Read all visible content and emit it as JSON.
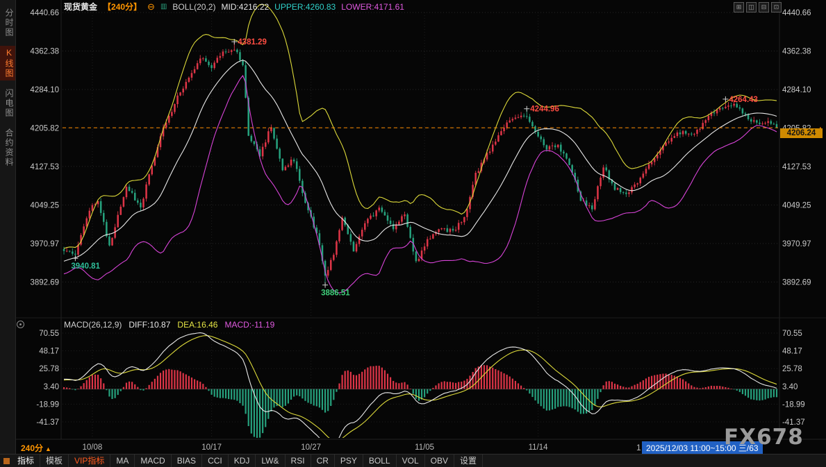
{
  "header": {
    "symbol": "现货黄金",
    "period_tag": "【240分】",
    "collapse_icon": "⊖",
    "boll_icon": "▥",
    "boll_label": "BOLL(20,2)",
    "boll_mid": "MID:4216.22",
    "boll_upper": "UPPER:4260.83",
    "boll_lower": "LOWER:4171.61",
    "layout_icons": [
      "⊞",
      "◫",
      "⊟",
      "⊡"
    ]
  },
  "sidebar": {
    "tabs": [
      {
        "label": "分时图",
        "active": false
      },
      {
        "label": "K线图",
        "active": true
      },
      {
        "label": "闪电图",
        "active": false
      },
      {
        "label": "合约资料",
        "active": false
      }
    ]
  },
  "macd_header": {
    "title": "MACD(26,12,9)",
    "diff": "DIFF:10.87",
    "dea": "DEA:16.46",
    "macd": "MACD:-11.19"
  },
  "price_tag": "4206.24",
  "date_axis": {
    "period": "240分",
    "period_arrow": "▲",
    "partial_label": "1",
    "highlight": "2025/12/03 11:00~15:00 三/63"
  },
  "toolbar": {
    "items": [
      {
        "label": "指标"
      },
      {
        "label": "模板"
      },
      {
        "label": "VIP指标"
      },
      {
        "label": "MA"
      },
      {
        "label": "MACD"
      },
      {
        "label": "BIAS"
      },
      {
        "label": "CCI"
      },
      {
        "label": "KDJ"
      },
      {
        "label": "LW&"
      },
      {
        "label": "RSI"
      },
      {
        "label": "CR"
      },
      {
        "label": "PSY"
      },
      {
        "label": "BOLL"
      },
      {
        "label": "VOL"
      },
      {
        "label": "OBV"
      },
      {
        "label": "设置"
      }
    ]
  },
  "watermark": "FX678",
  "chart_data": {
    "type": "candlestick_with_macd",
    "title": "现货黄金 240分 K线 BOLL(20,2) MACD(26,12,9)",
    "bars_visible": 252,
    "last_close": 4206.24,
    "price_axis_labels": [
      4440.66,
      4362.38,
      4284.1,
      4205.82,
      4127.53,
      4049.25,
      3970.97,
      3892.69
    ],
    "macd_axis_labels": [
      70.55,
      48.17,
      25.78,
      3.4,
      -18.99,
      -41.37
    ],
    "x_ticks": [
      {
        "label": "10/08",
        "bar": 10
      },
      {
        "label": "10/17",
        "bar": 52
      },
      {
        "label": "10/27",
        "bar": 87
      },
      {
        "label": "11/05",
        "bar": 127
      },
      {
        "label": "11/14",
        "bar": 167
      }
    ],
    "boll": {
      "period": 20,
      "mult": 2,
      "mid": 4216.22,
      "upper": 4260.83,
      "lower": 4171.61
    },
    "macd": {
      "fast": 12,
      "slow": 26,
      "signal": 9,
      "diff": 10.87,
      "dea": 16.46,
      "hist": -11.19
    },
    "close_anchors": [
      [
        0,
        3952
      ],
      [
        4,
        3952
      ],
      [
        9,
        4040
      ],
      [
        12,
        4056
      ],
      [
        16,
        3966
      ],
      [
        22,
        4086
      ],
      [
        27,
        4046
      ],
      [
        34,
        4190
      ],
      [
        40,
        4268
      ],
      [
        48,
        4350
      ],
      [
        52,
        4332
      ],
      [
        56,
        4360
      ],
      [
        60,
        4366
      ],
      [
        63,
        4336
      ],
      [
        65,
        4190
      ],
      [
        69,
        4152
      ],
      [
        73,
        4210
      ],
      [
        77,
        4122
      ],
      [
        81,
        4142
      ],
      [
        85,
        4052
      ],
      [
        89,
        3992
      ],
      [
        92,
        3906
      ],
      [
        95,
        3952
      ],
      [
        98,
        4022
      ],
      [
        102,
        3956
      ],
      [
        106,
        4012
      ],
      [
        111,
        4042
      ],
      [
        116,
        4002
      ],
      [
        120,
        4032
      ],
      [
        124,
        3932
      ],
      [
        128,
        3976
      ],
      [
        132,
        4002
      ],
      [
        137,
        3996
      ],
      [
        141,
        4022
      ],
      [
        145,
        4112
      ],
      [
        150,
        4162
      ],
      [
        154,
        4200
      ],
      [
        158,
        4228
      ],
      [
        163,
        4233
      ],
      [
        166,
        4200
      ],
      [
        170,
        4162
      ],
      [
        174,
        4172
      ],
      [
        178,
        4132
      ],
      [
        182,
        4062
      ],
      [
        186,
        4042
      ],
      [
        190,
        4128
      ],
      [
        194,
        4082
      ],
      [
        198,
        4072
      ],
      [
        202,
        4092
      ],
      [
        206,
        4128
      ],
      [
        210,
        4160
      ],
      [
        214,
        4188
      ],
      [
        218,
        4198
      ],
      [
        222,
        4196
      ],
      [
        226,
        4220
      ],
      [
        230,
        4246
      ],
      [
        233,
        4252
      ],
      [
        236,
        4256
      ],
      [
        240,
        4232
      ],
      [
        244,
        4214
      ],
      [
        248,
        4220
      ],
      [
        251,
        4206.24
      ]
    ],
    "forced_highs": [
      [
        60,
        4381.29
      ],
      [
        163,
        4244.96
      ],
      [
        233,
        4264.43
      ]
    ],
    "forced_lows": [
      [
        4,
        3940.81
      ],
      [
        92,
        3886.51
      ]
    ],
    "annotations": [
      {
        "bar": 60,
        "price": 4381.29,
        "text": "4381.29",
        "color": "#ff4d42",
        "pos": "right"
      },
      {
        "bar": 4,
        "price": 3940.81,
        "text": "3940.81",
        "color": "#2fbf9a",
        "pos": "below"
      },
      {
        "bar": 92,
        "price": 3886.51,
        "text": "3886.51",
        "color": "#3fcf7a",
        "pos": "below"
      },
      {
        "bar": 163,
        "price": 4244.96,
        "text": "4244.96",
        "color": "#ff4d42",
        "pos": "right"
      },
      {
        "bar": 233,
        "price": 4264.43,
        "text": "4264.43",
        "color": "#ff4d42",
        "pos": "right"
      }
    ],
    "colors": {
      "up": "#dd3547",
      "down": "#26a17d",
      "boll_mid": "#e8e8e8",
      "boll_upper": "#ddda3a",
      "boll_lower": "#d944d9",
      "diff_line": "#e8e8e8",
      "dea_line": "#ddda3a",
      "grid": "#262626",
      "axis_text": "#c9c9c9",
      "current_price": "#ff8c00"
    }
  }
}
